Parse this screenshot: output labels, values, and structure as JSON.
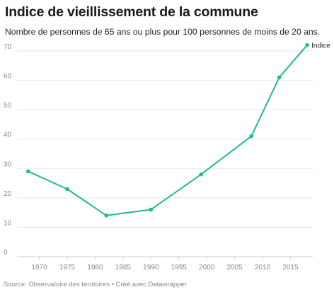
{
  "header": {
    "title": "Indice de vieillissement de la commune",
    "subtitle": "Nombre de personnes de 65 ans ou plus pour 100 personnes de moins de 20 ans."
  },
  "footer": {
    "source": "Source: Observatoire des territoires • Créé avec Datawrapper"
  },
  "colors": {
    "line": "#1fba92",
    "grid": "#e6e6e6",
    "tick": "#888888"
  },
  "chart_data": {
    "type": "line",
    "title": "Indice de vieillissement de la commune",
    "subtitle": "Nombre de personnes de 65 ans ou plus pour 100 personnes de moins de 20 ans.",
    "xlabel": "",
    "ylabel": "",
    "xlim": [
      1966,
      2019
    ],
    "ylim": [
      0,
      70
    ],
    "xticks": [
      1970,
      1975,
      1980,
      1985,
      1990,
      1995,
      2000,
      2005,
      2010,
      2015
    ],
    "yticks": [
      0,
      10,
      20,
      30,
      40,
      50,
      60,
      70
    ],
    "grid": "horizontal",
    "series": [
      {
        "name": "Indice",
        "x": [
          1968,
          1975,
          1982,
          1990,
          1999,
          2008,
          2013,
          2018
        ],
        "values": [
          29,
          23,
          14,
          16,
          28,
          41,
          61,
          72
        ]
      }
    ]
  }
}
